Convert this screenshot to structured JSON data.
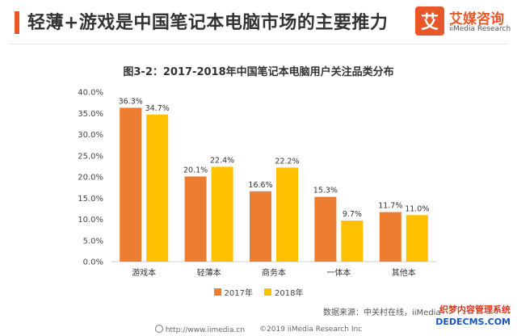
{
  "page": {
    "headline": "轻薄+游戏是中国笔记本电脑市场的主要推力",
    "accent_color": "#e8572a",
    "logo": {
      "box_char": "艾",
      "name_cn": "艾媒咨询",
      "name_en": "iiMedia Research",
      "color": "#e8572a"
    },
    "source": "数据来源：中关村在线，iiMedia",
    "footer": {
      "url": "http://www.iimedia.cn",
      "copyright": "©2019 iiMedia Research Inc"
    },
    "watermark": {
      "line1": "织梦内容管理系统",
      "line2": "DEDECMS.COM"
    }
  },
  "chart_data": {
    "type": "bar",
    "title": "图3-2：2017-2018年中国笔记本电脑用户关注品类分布",
    "categories": [
      "游戏本",
      "轻薄本",
      "商务本",
      "一体本",
      "其他本"
    ],
    "series": [
      {
        "name": "2017年",
        "values": [
          36.3,
          20.1,
          16.6,
          15.3,
          11.7
        ],
        "color": "#ed7d31"
      },
      {
        "name": "2018年",
        "values": [
          34.7,
          22.4,
          22.2,
          9.7,
          11.0
        ],
        "color": "#ffc000"
      }
    ],
    "ylim": [
      0,
      40
    ],
    "yticks": [
      "0.0%",
      "5.0%",
      "10.0%",
      "15.0%",
      "20.0%",
      "25.0%",
      "30.0%",
      "35.0%",
      "40.0%"
    ],
    "value_suffix": "%",
    "grid": false,
    "legend_position": "bottom-center",
    "xlabel": "",
    "ylabel": ""
  }
}
